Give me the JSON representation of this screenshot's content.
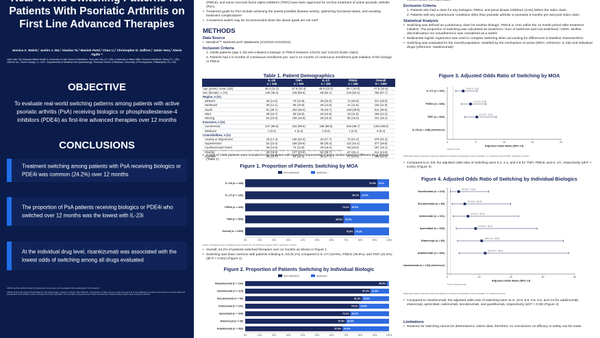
{
  "poster": {
    "title": "Real-World Switching Patterns for Patients With Psoriatic Arthritis on First Line Advanced Therapies",
    "authors": "Jessica A. Walsh,¹ Jashin J. Wu,² Xiaolan Ye,³ Manish Patel,³ Chao Li,³ Christopher D. Saffore,³ Jamie Vora,³ Alexis Ogdie ⁴",
    "affiliations": "¹Salt Lake City Veterans Affairs Health & University of Utah School of Medicine, Salt Lake City, UT, USA; ²University of Miami Miller School of Medicine, Miami, FL, USA; ³AbbVie Inc., North Chicago, IL, USA; ⁴Departments of Medicine and Epidemiology, Perelman School of Medicine, University of Pennsylvania, Philadelphia, PA, USA",
    "objective": {
      "heading": "OBJECTIVE",
      "text": "To evaluate real-world switching patterns among patients with active psoriatic arthritis (PsA) receiving biologics or phosphodiesterase-4 inhibitors (PDE4i) as first-line advanced therapies over 12 months"
    },
    "conclusions": {
      "heading": "CONCLUSIONS",
      "items": [
        "Treatment switching among patients with PsA receiving biologics or PDE4i was common (24.2%) over 12 months",
        "The proportion of PsA patients receiving biologics or PDE4i who switched over 12 months was the lowest with IL-23i",
        "At the individual drug level, risankizumab was associated with the lowest odds of switching among all drugs evaluated"
      ]
    },
    "disclosures": [
      "AbbVie and the authors thank the participants, study sites, and investigators who participated in this research.",
      "AbbVie funded this study and participated in the study design, research, analysis, data collection, interpretation of data, and the review and approval of the publication. All authors had access to relevant data and participated in the drafting, review, and approval of this publication. No honoraria or payments were made for authorship. Medical writing support was provided by AbbVie."
    ]
  },
  "middle": {
    "intro": [
      "Biologic therapies such as interleukin-17 inhibitors (IL-17i), interleukin-23 inhibitors (IL-23i), phosphodiesterase-4 inhibitors (PDE4i), and tumor necrosis factor alpha inhibitors (TNFi) have been approved for 1st line treatment of active psoriatic arthritis (PsA)",
      "Treatment goals for PsA include achieving the lowest possible disease activity, optimizing functional status, and avoiding treatment complications¹",
      "A treatment switch may be recommended when the above goals are not met²"
    ],
    "methods": {
      "heading": "METHODS",
      "data_source": {
        "heading": "Data Source",
        "bullets": [
          "Merative™ MarketScan® databases (1/1/2016-1/31/2024)"
        ]
      },
      "inclusion": {
        "heading": "Inclusion Criteria",
        "items": [
          "1. Adults patients (age ≥ 18) who initiated a biologic or PDE4i between 1/21/22 and 1/31/23 (index claim)",
          "2. Patients had ≥ 6 months of continuous enrollment pre- and ≥ 12 months of continuous enrollment post initiation of the biologic or PDE4i"
        ]
      }
    },
    "table": {
      "title": "Table 1. Patient Demographics",
      "columns": [
        {
          "name": "IL-23i",
          "n": "n = 248"
        },
        {
          "name": "TNFi",
          "n": "n = 534"
        },
        {
          "name": "IL-17i",
          "n": "n = 181"
        },
        {
          "name": "PDE4i",
          "n": "n = 346"
        },
        {
          "name": "Overall",
          "n": "N = 1309"
        }
      ],
      "rows": [
        [
          "Age (years), mean (SD)",
          "45.4 (11.2)",
          "47.9 (10.4)",
          "46.9 (10.3)",
          "49.7 (10.0)",
          "47.5 (10.5)"
        ],
        [
          "Sex (female), n (%)",
          "120 (48.4)",
          "318 (59.6)",
          "98 (54.1)",
          "219 (63.3)",
          "755 (57.7)"
        ],
        [
          "Region, n (%)"
        ],
        [
          "Midwest",
          "36 (14.5)",
          "79 (14.8)",
          "30 (16.6)",
          "72 (20.8)",
          "217 (16.6)"
        ],
        [
          "Northeast",
          "30 (12.1)",
          "58 (10.9)",
          "25 (13.8)",
          "41 (11.8)",
          "154 (11.8)"
        ],
        [
          "South",
          "91 (36.7)",
          "203 (38.0)",
          "79 (43.7)",
          "138 (39.9)",
          "511 (39.0)"
        ],
        [
          "West",
          "39 (15.7)",
          "88 (16.5)",
          "19 (10.5)",
          "40 (11.6)",
          "186 (14.2)"
        ],
        [
          "Missing",
          "52 (21.0)",
          "106 (19.9)",
          "28 (15.5)",
          "55 (15.9)",
          "241 (18.4)"
        ],
        [
          "Insurance, n (%)"
        ],
        [
          "Commercial",
          "247 (99.6)",
          "532 (99.6)",
          "180 (99.5)",
          "345 (99.7)",
          "1304 (99.6)"
        ],
        [
          "Medicare",
          "1 (0.4)",
          "2 (0.4)",
          "1 (0.6)",
          "1 (0.3)",
          "5 (0.4)"
        ],
        [
          "Comorbidities, n (%)"
        ],
        [
          "Anxiety or Depression",
          "43 (17.3)",
          "130 (24.3)",
          "32 (17.7)",
          "74 (21.4)",
          "279 (21.3)"
        ],
        [
          "Hypertension",
          "52 (21.0)",
          "158 (29.6)",
          "55 (30.4)",
          "112 (32.4)",
          "377 (28.8)"
        ],
        [
          "Cardiovascular Event",
          "36 (14.5)",
          "74 (13.9)",
          "29 (16.0)",
          "58 (16.8)",
          "197 (15.1)"
        ],
        [
          "Obesity",
          "46 (18.6)",
          "127 (23.8)",
          "52 (28.7)",
          "87 (25.1)",
          "312 (23.8)"
        ],
        [
          "Diabetes",
          "29 (11.7)",
          "61 (11.4)",
          "32 (17.7)",
          "47 (13.6)",
          "169 (12.9)"
        ]
      ],
      "note": "IL-17i, interleukin-17 inhibitor; IL-23i, interleukin-23 inhibitor; PDE4i, phosphodiesterase-4 inhibitor; SD, standard deviation; TNFi, tumor necrosis factor alpha inhibitor."
    },
    "table_bullet": "A total of 1309 patients were included in the analyses with baseline characteristics being similar between different drug MOAs (Table 1)",
    "fig1_note": "MOAs = 28 patients were not displayed and excluded from the MOA level analysis. MOA, mechanism of action.",
    "fig1_bullets": [
      "Overall, 24.2% of patients switched therapies over 12 months as shown in Figure 1",
      "Switching was least common with patients initiating IL-23i (8.1%) compared to IL-17i (19.9%), PDE4i (26.9%), and TNFi (31.5%) (all P < 0.001) (Figure 1)"
    ]
  },
  "right": {
    "carry": "months before the index claim",
    "exclusion": {
      "heading": "Exclusion Criteria",
      "items": [
        "1. Patients who had a claim for any biologics, PDE4i, and janus kinase inhibitors (JAKi) before the index claim",
        "2. Patients with any autoimmune conditions other than psoriatic arthritis or psoriasis 6 months pre and post index claim"
      ]
    },
    "statistics": {
      "heading": "Statistical Analysis",
      "bullets": [
        "Switching was defined as a pharmacy claim for another biologic, PDE4i or JAKi within the 12 month period after treatment initiation. The proportion of switching was calculated as (switchers / sum of switchers and non-switchers) *100%. Neither discontinuation nor nonadherence was considered as a switch",
        "Multivariate logistic regression was used to compare switching when accounting for differences in baseline characteristics",
        "Switching was evaluated for the overall population, stratified by the mechanism of action (MOA; reference: IL-23i) and individual drugs (reference: risankizumab)"
      ]
    },
    "fig3_note": "Multivariate logistic regression model was adjusted for baseline demographics and comorbidities. CI, confidence interval; MOA, mechanism of action.",
    "fig3_bullet": "Compared to IL-23i, the adjusted odds ratio of switching were 5.2, 4.1, and 2.8 for TNFi, PDE4i, and IL-17i, respectively (all P < 0.001) (Figure 3)",
    "fig4_note": "Multivariate logistic regression model was adjusted for baseline demographics and comorbidities. CI, confidence interval.",
    "fig4_bullet": "Compared to risankizumab, the adjusted odds ratio of switching were 11.9, 10.8, 8.9, 6.5, 5.5, and 3.6 for adalimumab, etanercept, apremilast, ixekizumab, secukinumab, and guselkumab, respectively (all P < 0.05) (Figure 4)",
    "limitations": {
      "heading": "Limitations",
      "bullets": [
        "Reasons for switching cannot be determined in claims data; therefore, no conclusions on efficacy or safety can be made"
      ]
    }
  },
  "chart_data": [
    {
      "type": "bar",
      "horizontal": true,
      "stacked": true,
      "title": "Figure 1. Proportion of Patients Switching by MOA",
      "categories": [
        "IL-23i (n = 248)",
        "IL-17i (n = 181)",
        "PDE4i (n = 346)",
        "TNFi (n = 534)",
        "Overall (n = 1309)"
      ],
      "series": [
        {
          "name": "Non-switchers",
          "color": "#1b2a5e",
          "values": [
            91.9,
            80.1,
            73.1,
            68.5,
            75.8
          ],
          "value_labels": [
            "91.9%",
            "80.1%",
            "73.1%",
            "68.5%",
            "75.8%"
          ]
        },
        {
          "name": "Switchers",
          "color": "#2e6be0",
          "values": [
            8.1,
            19.9,
            26.9,
            31.5,
            24.2
          ],
          "value_labels": [
            "8.1%",
            "19.9%",
            "26.9%",
            "31.5%",
            "24.2%"
          ]
        }
      ],
      "xlim": [
        0,
        100
      ],
      "xticks": [
        {
          "value": 0,
          "label": "0%"
        },
        {
          "value": 10,
          "label": "10%"
        },
        {
          "value": 20,
          "label": "20%"
        },
        {
          "value": 30,
          "label": "30%"
        },
        {
          "value": 40,
          "label": "40%"
        },
        {
          "value": 50,
          "label": "50%"
        },
        {
          "value": 60,
          "label": "60%"
        },
        {
          "value": 70,
          "label": "70%"
        },
        {
          "value": 80,
          "label": "80%"
        },
        {
          "value": 90,
          "label": "90%"
        },
        {
          "value": 100,
          "label": "100%"
        }
      ]
    },
    {
      "type": "bar",
      "horizontal": true,
      "stacked": true,
      "title": "Figure 2. Proportion of Patients Switching by Individual Biologic",
      "categories": [
        "Risankizumab (n = 132)",
        "Guselkumab (n = 115)",
        "Secukinumab (n = 80)",
        "Ixekizumab (n = 101)",
        "Apremilast (n = 346)",
        "Etanercept (n = 80)",
        "Adalimumab (n = 352)"
      ],
      "series": [
        {
          "name": "Non-switchers",
          "color": "#1b2a5e",
          "values": [
            98.5,
            87.1,
            81.2,
            79.2,
            73.1,
            70.0,
            67.6
          ],
          "value_labels": [
            "98.5%",
            "87.1%",
            "81.2%",
            "79.2%",
            "73.1%",
            "70.0%",
            "67.6%"
          ]
        },
        {
          "name": "Switchers",
          "color": "#2e6be0",
          "values": [
            1.5,
            12.9,
            18.8,
            20.8,
            26.9,
            30.0,
            32.4
          ],
          "value_labels": [
            "1.5%",
            "12.9%",
            "18.8%",
            "20.8%",
            "26.9%",
            "30.0%",
            "32.4%"
          ]
        }
      ],
      "xlim": [
        0,
        100
      ],
      "xticks": [
        {
          "value": 0,
          "label": "0%"
        },
        {
          "value": 10,
          "label": "10%"
        },
        {
          "value": 20,
          "label": "20%"
        },
        {
          "value": 30,
          "label": "30%"
        },
        {
          "value": 40,
          "label": "40%"
        },
        {
          "value": 50,
          "label": "50%"
        },
        {
          "value": 60,
          "label": "60%"
        },
        {
          "value": 70,
          "label": "70%"
        },
        {
          "value": 80,
          "label": "80%"
        },
        {
          "value": 90,
          "label": "90%"
        },
        {
          "value": 100,
          "label": "100%"
        }
      ]
    },
    {
      "type": "forest",
      "title": "Figure 3. Adjusted Odds Ratio of Switching by MOA",
      "categories": [
        "IL-17i (n = 181)",
        "PDE4i (n = 346)",
        "TNFi (n = 534)"
      ],
      "values": [
        2.8,
        4.1,
        5.2
      ],
      "ci_low": [
        1.5,
        2.5,
        3.1
      ],
      "ci_high": [
        5.3,
        6.8,
        8.6
      ],
      "value_labels": [
        "2.8 (1.5 - 5.3)",
        "4.1 (2.5 - 6.8)",
        "5.2 (3.1 - 8.6)"
      ],
      "reference": "IL-23i (n = 248) (reference)",
      "refline": 1,
      "color": "#1b2a5e",
      "xlim": [
        0,
        20
      ],
      "xticks": [
        0,
        5,
        10,
        15,
        20
      ],
      "xlabel": "Adjusted Odds Ratio (95% CI)",
      "favors": "Favors IL-23i"
    },
    {
      "type": "forest",
      "title": "Figure 4. Adjusted Odds Ratio of Switching by Individual Biologics",
      "categories": [
        "Guselkumab (n = 115)",
        "Secukinumab (n = 80)",
        "Ixekizumab (n = 101)",
        "Apremilast (n = 346)",
        "Etanercept (n = 80)",
        "Adalimumab (n = 352)"
      ],
      "values": [
        3.6,
        5.5,
        6.5,
        8.9,
        10.8,
        11.9
      ],
      "ci_low": [
        1.0,
        1.5,
        1.9,
        2.8,
        3.2,
        3.7
      ],
      "ci_high": [
        13.0,
        19.9,
        22.4,
        28.2,
        36.5,
        38.1
      ],
      "value_labels": [
        "3.6 (1.0 - 13.0)",
        "5.5 (1.5 - 19.9)",
        "6.5 (1.9 - 22.4)",
        "8.9 (2.8 - 28.2)",
        "10.8 (3.2 - 36.5)",
        "11.9 (3.7 - 38.1)"
      ],
      "reference": "Risankizumab (n = 132) (reference)",
      "refline": 1,
      "color": "#1b2a5e",
      "xlim": [
        0,
        40
      ],
      "xticks": [
        0,
        10,
        20,
        30,
        40
      ],
      "xlabel": "Adjusted Odds Ratio (95% CI)",
      "favors": "Favors risankizumab"
    }
  ]
}
